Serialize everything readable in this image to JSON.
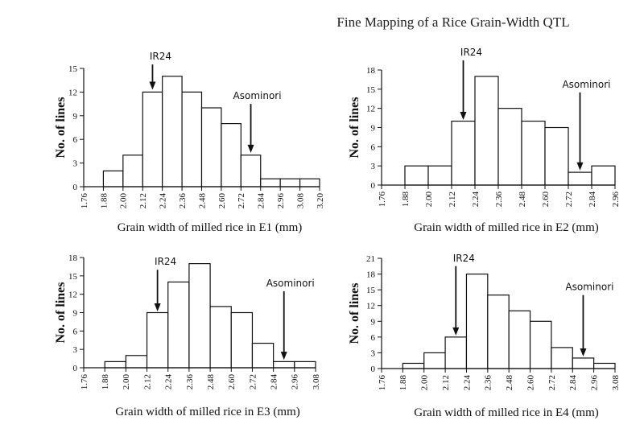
{
  "page_title": "Fine Mapping of a Rice Grain-Width QTL",
  "chart_data": [
    {
      "type": "bar",
      "panel": "E1",
      "xlabel": "Grain width of milled rice in E1 (mm)",
      "ylabel": "No. of lines",
      "x_ticks": [
        "1.76",
        "1.88",
        "2.00",
        "2.12",
        "2.24",
        "2.36",
        "2.48",
        "2.60",
        "2.72",
        "2.84",
        "2.96",
        "3.08",
        "3.20"
      ],
      "y_ticks": [
        0,
        3,
        6,
        9,
        12,
        15
      ],
      "ylim": [
        0,
        15
      ],
      "xlim": [
        1.76,
        3.2
      ],
      "bins": [
        [
          1.88,
          2.0
        ],
        [
          2.0,
          2.12
        ],
        [
          2.12,
          2.24
        ],
        [
          2.24,
          2.36
        ],
        [
          2.36,
          2.48
        ],
        [
          2.48,
          2.6
        ],
        [
          2.6,
          2.72
        ],
        [
          2.72,
          2.84
        ],
        [
          2.84,
          2.96
        ],
        [
          2.96,
          3.08
        ],
        [
          3.08,
          3.2
        ]
      ],
      "values": [
        2,
        4,
        12,
        14,
        12,
        10,
        8,
        4,
        1,
        1,
        1
      ],
      "annotations": [
        {
          "label": "IR24",
          "x": 2.18,
          "y_tip": 12.3,
          "y_tail": 15.5
        },
        {
          "label": "Asominori",
          "x": 2.78,
          "y_tip": 4.3,
          "y_tail": 10.5
        }
      ]
    },
    {
      "type": "bar",
      "panel": "E2",
      "xlabel": "Grain width of milled rice in E2 (mm)",
      "ylabel": "No. of lines",
      "x_ticks": [
        "1.76",
        "1.88",
        "2.00",
        "2.12",
        "2.24",
        "2.36",
        "2.48",
        "2.60",
        "2.72",
        "2.84",
        "2.96"
      ],
      "y_ticks": [
        0,
        3,
        6,
        9,
        12,
        15,
        18
      ],
      "ylim": [
        0,
        18
      ],
      "xlim": [
        1.76,
        2.96
      ],
      "bins": [
        [
          1.88,
          2.0
        ],
        [
          2.0,
          2.12
        ],
        [
          2.12,
          2.24
        ],
        [
          2.24,
          2.36
        ],
        [
          2.36,
          2.48
        ],
        [
          2.48,
          2.6
        ],
        [
          2.6,
          2.72
        ],
        [
          2.72,
          2.84
        ],
        [
          2.84,
          2.96
        ]
      ],
      "values": [
        3,
        3,
        10,
        17,
        12,
        10,
        9,
        2,
        3
      ],
      "annotations": [
        {
          "label": "IR24",
          "x": 2.18,
          "y_tip": 10.2,
          "y_tail": 19.5
        },
        {
          "label": "Asominori",
          "x": 2.78,
          "y_tip": 2.3,
          "y_tail": 14.5
        }
      ]
    },
    {
      "type": "bar",
      "panel": "E3",
      "xlabel": "Grain width of milled rice in E3 (mm)",
      "ylabel": "No. of lines",
      "x_ticks": [
        "1.76",
        "1.88",
        "2.00",
        "2.12",
        "2.24",
        "2.36",
        "2.48",
        "2.60",
        "2.72",
        "2.84",
        "2.96",
        "3.08"
      ],
      "y_ticks": [
        0,
        3,
        6,
        9,
        12,
        15,
        18
      ],
      "ylim": [
        0,
        18
      ],
      "xlim": [
        1.76,
        3.08
      ],
      "bins": [
        [
          1.88,
          2.0
        ],
        [
          2.0,
          2.12
        ],
        [
          2.12,
          2.24
        ],
        [
          2.24,
          2.36
        ],
        [
          2.36,
          2.48
        ],
        [
          2.48,
          2.6
        ],
        [
          2.6,
          2.72
        ],
        [
          2.72,
          2.84
        ],
        [
          2.84,
          2.96
        ],
        [
          2.96,
          3.08
        ]
      ],
      "values": [
        1,
        2,
        9,
        14,
        17,
        10,
        9,
        4,
        1,
        1
      ],
      "annotations": [
        {
          "label": "IR24",
          "x": 2.18,
          "y_tip": 9.2,
          "y_tail": 16
        },
        {
          "label": "Asominori",
          "x": 2.9,
          "y_tip": 1.3,
          "y_tail": 12.5
        }
      ]
    },
    {
      "type": "bar",
      "panel": "E4",
      "xlabel": "Grain width of milled rice in E4 (mm)",
      "ylabel": "No. of lines",
      "x_ticks": [
        "1.76",
        "1.88",
        "2.00",
        "2.12",
        "2.24",
        "2.36",
        "2.48",
        "2.60",
        "2.72",
        "2.84",
        "2.96",
        "3.08"
      ],
      "y_ticks": [
        0,
        3,
        6,
        9,
        12,
        15,
        18,
        21
      ],
      "ylim": [
        0,
        21
      ],
      "xlim": [
        1.76,
        3.08
      ],
      "bins": [
        [
          1.88,
          2.0
        ],
        [
          2.0,
          2.12
        ],
        [
          2.12,
          2.24
        ],
        [
          2.24,
          2.36
        ],
        [
          2.36,
          2.48
        ],
        [
          2.48,
          2.6
        ],
        [
          2.6,
          2.72
        ],
        [
          2.72,
          2.84
        ],
        [
          2.84,
          2.96
        ],
        [
          2.96,
          3.08
        ]
      ],
      "values": [
        1,
        3,
        6,
        18,
        14,
        11,
        9,
        4,
        2,
        1
      ],
      "annotations": [
        {
          "label": "IR24",
          "x": 2.18,
          "y_tip": 6.3,
          "y_tail": 19.5
        },
        {
          "label": "Asominori",
          "x": 2.9,
          "y_tip": 2.3,
          "y_tail": 14
        }
      ]
    }
  ]
}
